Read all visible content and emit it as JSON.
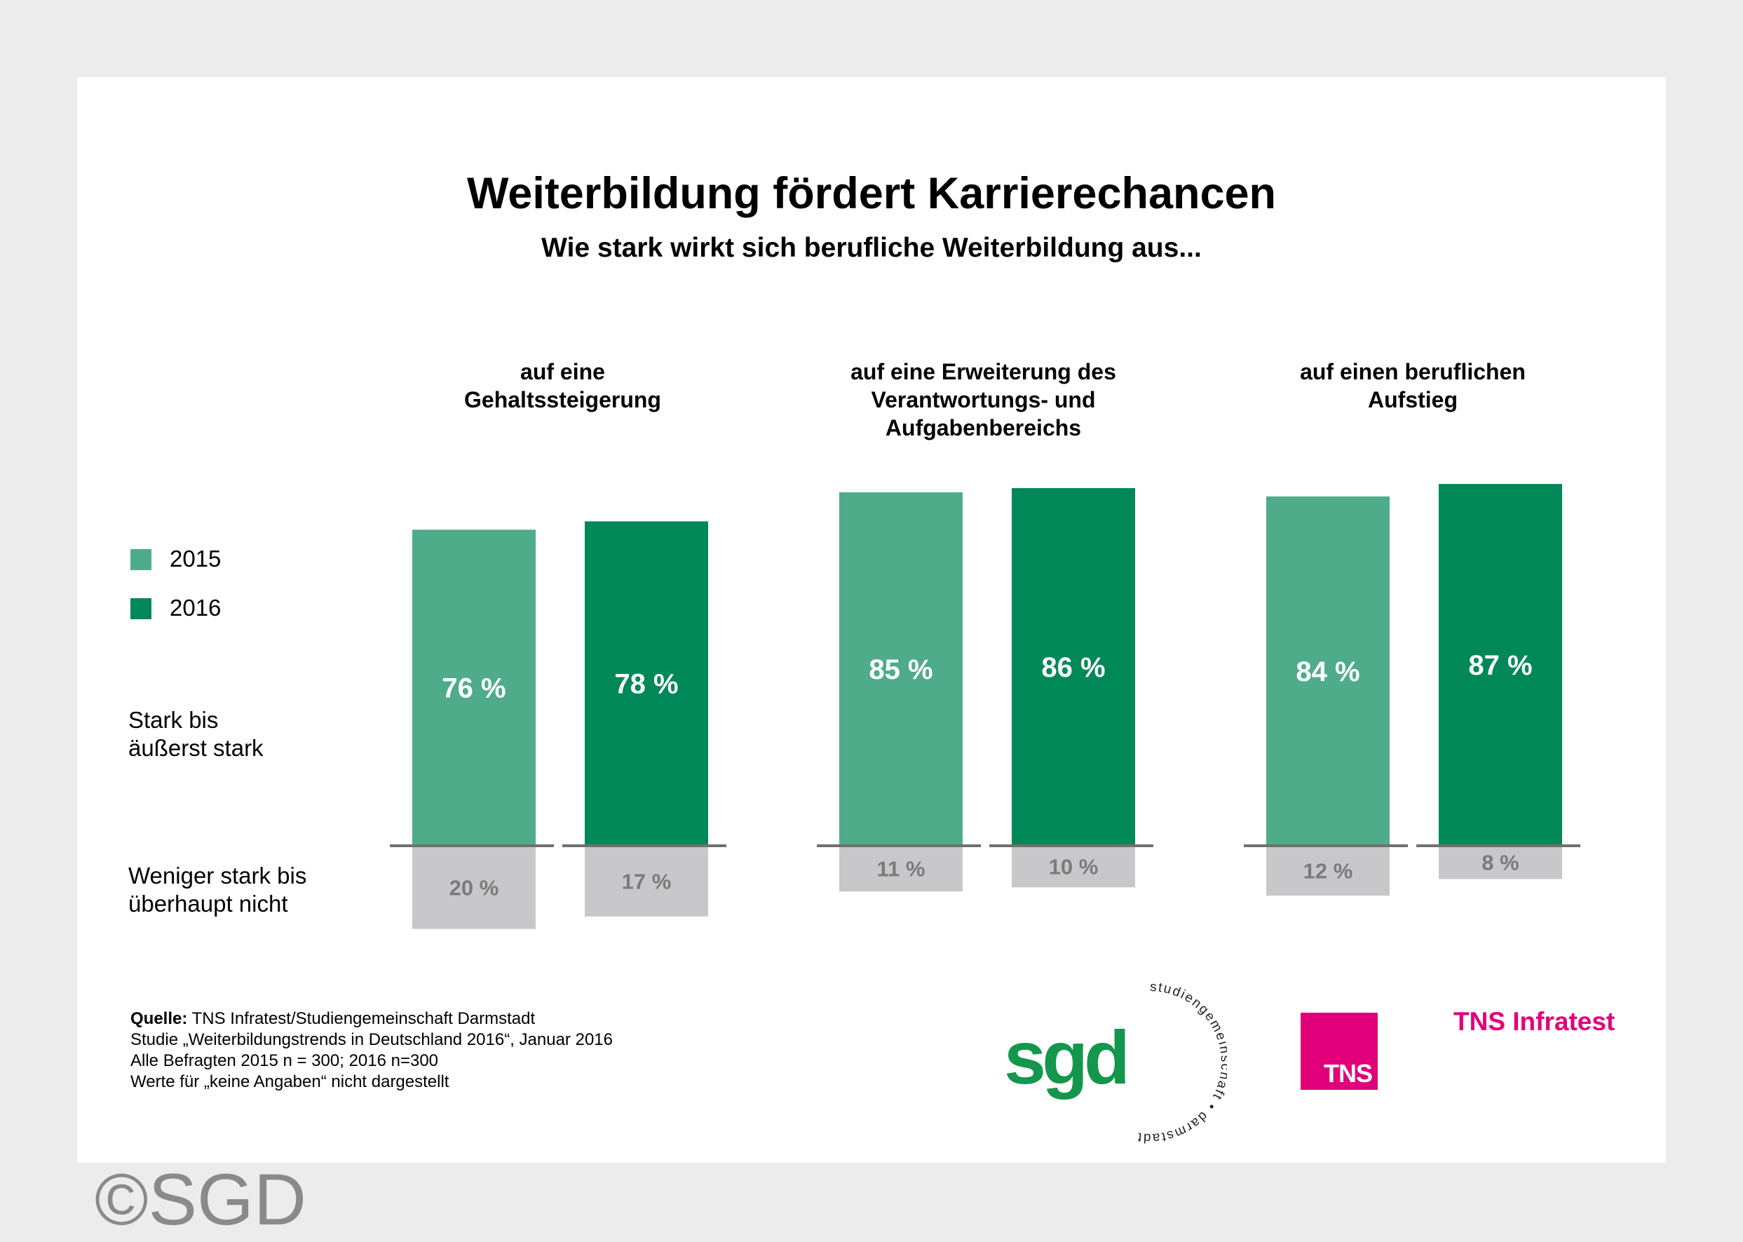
{
  "chart_data": {
    "type": "bar",
    "title": "Weiterbildung fördert Karrierechancen",
    "subtitle": "Wie stark wirkt sich berufliche Weiterbildung aus...",
    "categories": [
      "auf eine\nGehaltssteigerung",
      "auf eine Erweiterung des\nVerantwortungs- und\nAufgabenbereichs",
      "auf einen beruflichen\nAufstieg"
    ],
    "series": [
      {
        "name": "2015",
        "color": "#4fac8a",
        "positive": [
          76,
          85,
          84
        ],
        "negative": [
          20,
          11,
          12
        ],
        "positive_labels": [
          "76 %",
          "85 %",
          "84 %"
        ],
        "negative_labels": [
          "20 %",
          "11 %",
          "12 %"
        ]
      },
      {
        "name": "2016",
        "color": "#008858",
        "positive": [
          78,
          86,
          87
        ],
        "negative": [
          17,
          10,
          8
        ],
        "positive_labels": [
          "78 %",
          "86 %",
          "87 %"
        ],
        "negative_labels": [
          "17 %",
          "10 %",
          "8 %"
        ]
      }
    ],
    "negative_color": "#c8c8ca",
    "row_labels": {
      "positive": "Stark bis\näußerst stark",
      "negative": "Weniger stark bis\nüberhaupt nicht"
    },
    "ylim": [
      -20,
      100
    ]
  },
  "source": {
    "label": "Quelle:",
    "line1": "TNS Infratest/Studiengemeinschaft Darmstadt",
    "line2": "Studie „Weiterbildungstrends in Deutschland 2016“, Januar 2016",
    "line3": "Alle Befragten 2015 n = 300; 2016 n=300",
    "line4": "Werte für „keine Angaben“ nicht dargestellt"
  },
  "logos": {
    "sgd_mark": "sgd",
    "sgd_ring": "studiengemeinschaft • darmstadt",
    "tns_box": "TNS",
    "tns_text": "TNS Infratest"
  },
  "copyright": "©SGD"
}
